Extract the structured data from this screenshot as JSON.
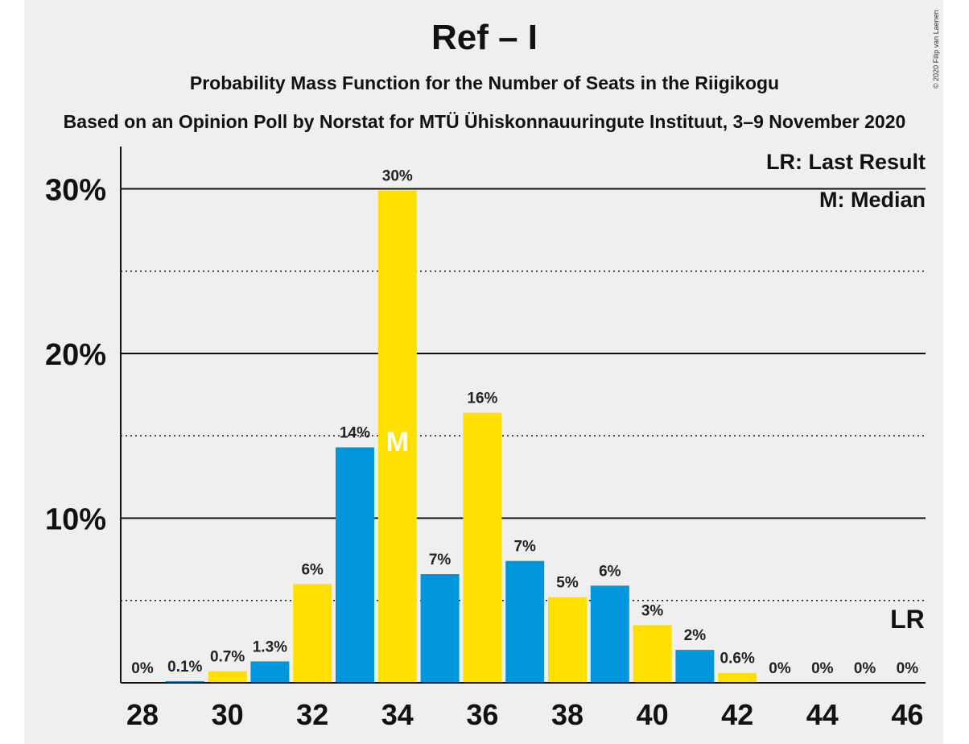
{
  "chart_data": {
    "type": "bar",
    "title": "Ref – I",
    "subtitle": "Probability Mass Function for the Number of Seats in the Riigikogu",
    "source": "Based on an Opinion Poll by Norstat for MTÜ Ühiskonnauuringute Instituut, 3–9 November 2020",
    "copyright": "© 2020 Filip van Laenen",
    "x": [
      28,
      29,
      30,
      31,
      32,
      33,
      34,
      35,
      36,
      37,
      38,
      39,
      40,
      41,
      42,
      43,
      44,
      45,
      46
    ],
    "values": [
      0,
      0.1,
      0.7,
      1.3,
      6,
      14.3,
      29.9,
      6.6,
      16.4,
      7.4,
      5.2,
      5.9,
      3.5,
      2.0,
      0.6,
      0,
      0,
      0,
      0
    ],
    "data_labels": [
      "0%",
      "0.1%",
      "0.7%",
      "1.3%",
      "6%",
      "14%",
      "30%",
      "7%",
      "16%",
      "7%",
      "5%",
      "6%",
      "3%",
      "2%",
      "0.6%",
      "0%",
      "0%",
      "0%",
      "0%"
    ],
    "x_tick_labels": [
      "28",
      "30",
      "32",
      "34",
      "36",
      "38",
      "40",
      "42",
      "44",
      "46"
    ],
    "y_ticks": [
      10,
      20,
      30
    ],
    "y_tick_labels": [
      "10%",
      "20%",
      "30%"
    ],
    "ylim": [
      0,
      32.5
    ],
    "xlabel": "",
    "ylabel": "",
    "grid": "solid major lines at 10% steps, dotted minor lines at 5% steps",
    "colors": {
      "blue": "#0096db",
      "yellow": "#ffe000",
      "background": "#efefef",
      "text": "#111111"
    },
    "bar_color_order": [
      "blue",
      "blue",
      "yellow",
      "blue",
      "yellow",
      "blue",
      "yellow",
      "blue",
      "yellow",
      "blue",
      "yellow",
      "blue",
      "yellow",
      "blue",
      "yellow",
      "blue",
      "yellow",
      "blue",
      "yellow"
    ],
    "median": {
      "x": 34,
      "label": "M"
    },
    "last_result": {
      "x": 46,
      "label": "LR"
    },
    "legend": {
      "placement": "top-right",
      "lines": [
        "LR: Last Result",
        "M: Median"
      ]
    }
  }
}
